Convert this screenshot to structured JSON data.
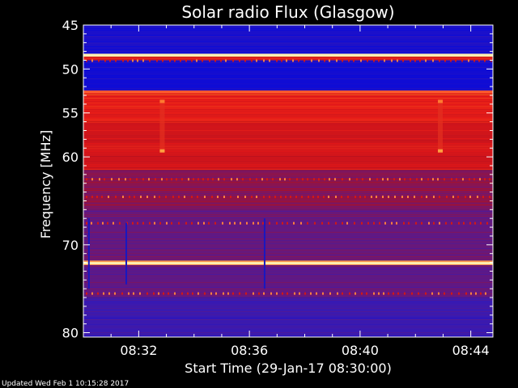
{
  "chart_data": {
    "type": "heatmap",
    "title": "Solar radio Flux (Glasgow)",
    "xlabel": "Start Time (29-Jan-17 08:30:00)",
    "ylabel": "Frequency [MHz]",
    "x_range_minutes": [
      0,
      14.8
    ],
    "x_ticks": [
      {
        "minute": 2,
        "label": "08:32"
      },
      {
        "minute": 6,
        "label": "08:36"
      },
      {
        "minute": 10,
        "label": "08:40"
      },
      {
        "minute": 14,
        "label": "08:44"
      }
    ],
    "y_range_mhz": [
      45,
      80.5
    ],
    "y_inverted": true,
    "y_ticks": [
      {
        "mhz": 45,
        "label": "45"
      },
      {
        "mhz": 50,
        "label": "50"
      },
      {
        "mhz": 55,
        "label": "55"
      },
      {
        "mhz": 60,
        "label": "60"
      },
      {
        "mhz": 70,
        "label": "70"
      },
      {
        "mhz": 80,
        "label": "80"
      }
    ],
    "colorscale": [
      "#0b0bd8",
      "#3a1ab0",
      "#6a1878",
      "#b01020",
      "#e41818",
      "#ff6a20",
      "#ffe090",
      "#fffff0"
    ],
    "bands": [
      {
        "from": 45.0,
        "to": 48.3,
        "level": 0.05
      },
      {
        "from": 48.3,
        "to": 48.6,
        "level": 0.9
      },
      {
        "from": 48.6,
        "to": 49.0,
        "level": 0.6
      },
      {
        "from": 49.0,
        "to": 52.4,
        "level": 0.02
      },
      {
        "from": 52.4,
        "to": 52.9,
        "level": 0.65
      },
      {
        "from": 52.9,
        "to": 56.0,
        "level": 0.58
      },
      {
        "from": 56.0,
        "to": 61.5,
        "level": 0.52
      },
      {
        "from": 61.5,
        "to": 66.0,
        "level": 0.35
      },
      {
        "from": 66.0,
        "to": 71.8,
        "level": 0.28
      },
      {
        "from": 71.8,
        "to": 72.3,
        "level": 0.8
      },
      {
        "from": 72.3,
        "to": 76.0,
        "level": 0.26
      },
      {
        "from": 76.0,
        "to": 80.5,
        "level": 0.14
      }
    ],
    "bright_lines_mhz": [
      48.4,
      52.6,
      72.1
    ],
    "events": [
      {
        "minute": 0.2,
        "mhz_from": 67.0,
        "mhz_to": 75.0,
        "kind": "dark-stripe"
      },
      {
        "minute": 1.55,
        "mhz_from": 67.5,
        "mhz_to": 74.5,
        "kind": "dark-stripe"
      },
      {
        "minute": 6.55,
        "mhz_from": 67.0,
        "mhz_to": 75.0,
        "kind": "dark-stripe"
      },
      {
        "minute": 2.85,
        "mhz_from": 53.5,
        "mhz_to": 59.5,
        "kind": "orange-marker"
      },
      {
        "minute": 12.9,
        "mhz_from": 53.5,
        "mhz_to": 59.5,
        "kind": "orange-marker"
      }
    ]
  },
  "footer": {
    "updated": "Updated Wed Feb  1 10:15:28 2017"
  }
}
